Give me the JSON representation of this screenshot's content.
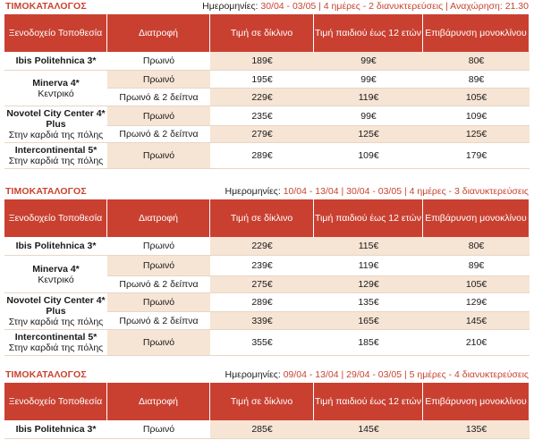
{
  "sections": [
    {
      "label": "ΤΙΜΟΚΑΤΑΛΟΓΟΣ",
      "dates_prefix": "Ημερομηνίες: ",
      "dates": "30/04 - 03/05 | 4 ημέρες - 2 διανυκτερεύσεις | Αναχώρηση: 21.30",
      "headers": [
        "Ξενοδοχείο Τοποθεσία",
        "Διατροφή",
        "Τιμή σε δίκλινο",
        "Τιμή παιδιού έως 12 ετών",
        "Επιβάρυνση μονοκλίνου"
      ],
      "rows": [
        {
          "hotel": "Ibis Politehnica 3*",
          "loc": "",
          "meal": "Πρωινό",
          "double": "189€",
          "child": "99€",
          "single": "80€"
        },
        {
          "hotel": "Minerva 4*",
          "loc": "Κεντρικό",
          "meal": "Πρωινό",
          "double": "195€",
          "child": "99€",
          "single": "89€"
        },
        {
          "hotel": "",
          "loc": "",
          "meal": "Πρωινό & 2 δείπνα",
          "double": "229€",
          "child": "119€",
          "single": "105€"
        },
        {
          "hotel": "Novotel City Center 4* Plus",
          "loc": "Στην καρδιά της πόλης",
          "meal": "Πρωινό",
          "double": "235€",
          "child": "99€",
          "single": "109€"
        },
        {
          "hotel": "",
          "loc": "",
          "meal": "Πρωινό & 2 δείπνα",
          "double": "279€",
          "child": "125€",
          "single": "125€"
        },
        {
          "hotel": "Intercontinental 5*",
          "loc": "Στην καρδιά της πόλης",
          "meal": "Πρωινό",
          "double": "289€",
          "child": "109€",
          "single": "179€"
        }
      ]
    },
    {
      "label": "ΤΙΜΟΚΑΤΑΛΟΓΟΣ",
      "dates_prefix": "Ημερομηνίες: ",
      "dates": "10/04 - 13/04 |  30/04 - 03/05  | 4 ημέρες - 3 διανυκτερεύσεις",
      "headers": [
        "Ξενοδοχείο Τοποθεσία",
        "Διατροφή",
        "Τιμή σε δίκλινο",
        "Τιμή παιδιού έως 12 ετών",
        "Επιβάρυνση μονοκλίνου"
      ],
      "rows": [
        {
          "hotel": "Ibis Politehnica 3*",
          "loc": "",
          "meal": "Πρωινό",
          "double": "229€",
          "child": "115€",
          "single": "80€"
        },
        {
          "hotel": "Minerva 4*",
          "loc": "Κεντρικό",
          "meal": "Πρωινό",
          "double": "239€",
          "child": "119€",
          "single": "89€"
        },
        {
          "hotel": "",
          "loc": "",
          "meal": "Πρωινό & 2 δείπνα",
          "double": "275€",
          "child": "129€",
          "single": "105€"
        },
        {
          "hotel": "Novotel City Center 4* Plus",
          "loc": "Στην καρδιά της πόλης",
          "meal": "Πρωινό",
          "double": "289€",
          "child": "135€",
          "single": "129€"
        },
        {
          "hotel": "",
          "loc": "",
          "meal": "Πρωινό & 2 δείπνα",
          "double": "339€",
          "child": "165€",
          "single": "145€"
        },
        {
          "hotel": "Intercontinental 5*",
          "loc": "Στην καρδιά της πόλης",
          "meal": "Πρωινό",
          "double": "355€",
          "child": "185€",
          "single": "210€"
        }
      ]
    },
    {
      "label": "ΤΙΜΟΚΑΤΑΛΟΓΟΣ",
      "dates_prefix": "Ημερομηνίες: ",
      "dates": "09/04 - 13/04 | 29/04 - 03/05 | 5 ημέρες - 4 διανυκτερεύσεις",
      "headers": [
        "Ξενοδοχείο Τοποθεσία",
        "Διατροφή",
        "Τιμή σε δίκλινο",
        "Τιμή παιδιού έως 12 ετών",
        "Επιβάρυνση μονοκλίνου"
      ],
      "rows": [
        {
          "hotel": "Ibis Politehnica 3*",
          "loc": "",
          "meal": "Πρωινό",
          "double": "285€",
          "child": "145€",
          "single": "135€"
        }
      ]
    }
  ]
}
